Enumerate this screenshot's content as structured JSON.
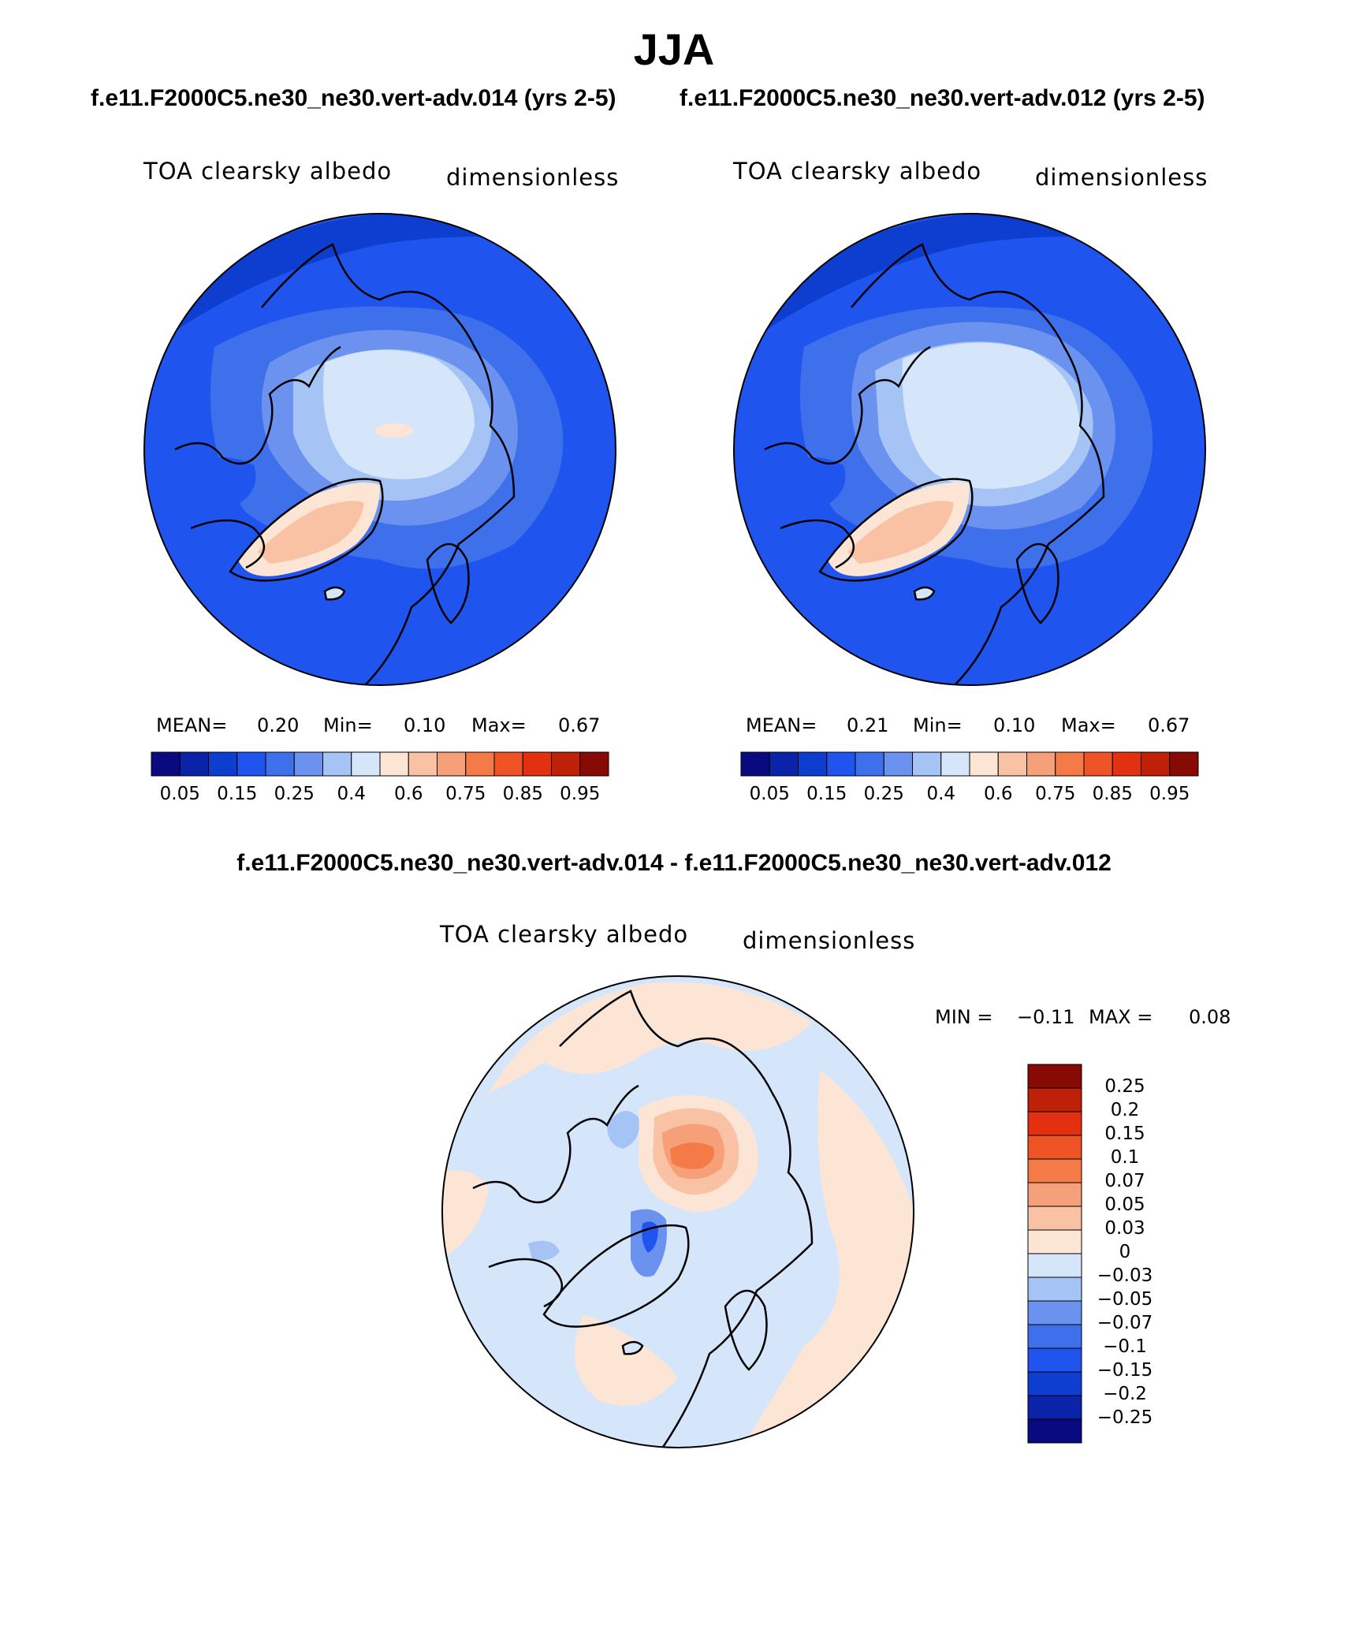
{
  "figure": {
    "season": "JJA",
    "case_a": "f.e11.F2000C5.ne30_ne30.vert-adv.014 (yrs 2-5)",
    "case_b": "f.e11.F2000C5.ne30_ne30.vert-adv.012 (yrs 2-5)",
    "diff_title": "f.e11.F2000C5.ne30_ne30.vert-adv.014 - f.e11.F2000C5.ne30_ne30.vert-adv.012"
  },
  "panels": [
    {
      "variable": "TOA clearsky albedo",
      "units": "dimensionless",
      "mean_label": "MEAN=",
      "mean": "0.20",
      "min_label": "Min=",
      "min": "0.10",
      "max_label": "Max=",
      "max": "0.67"
    },
    {
      "variable": "TOA clearsky albedo",
      "units": "dimensionless",
      "mean_label": "MEAN=",
      "mean": "0.21",
      "min_label": "Min=",
      "min": "0.10",
      "max_label": "Max=",
      "max": "0.67"
    }
  ],
  "diff_panel": {
    "variable": "TOA clearsky albedo",
    "units": "dimensionless",
    "min_label": "MIN =",
    "min": "−0.11",
    "max_label": "MAX =",
    "max": "0.08"
  },
  "colorbar_abs": {
    "colors": [
      "#0a0a80",
      "#0b23a8",
      "#0d3ed0",
      "#1f55ee",
      "#3f70ec",
      "#6a92ee",
      "#a5c4f5",
      "#d5e6fb",
      "#fde5d5",
      "#f9c2a5",
      "#f6a07a",
      "#f47a48",
      "#ef5326",
      "#e33010",
      "#be2008",
      "#870a04"
    ],
    "labels": [
      "0.05",
      "0.15",
      "0.25",
      "0.4",
      "0.6",
      "0.75",
      "0.85",
      "0.95"
    ]
  },
  "colorbar_diff": {
    "colors": [
      "#870a04",
      "#be2008",
      "#e33010",
      "#ef5326",
      "#f47a48",
      "#f6a07a",
      "#f9c2a5",
      "#fde5d5",
      "#d5e6fb",
      "#a5c4f5",
      "#6a92ee",
      "#3f70ec",
      "#1f55ee",
      "#0d3ed0",
      "#0b23a8",
      "#0a0a80"
    ],
    "labels": [
      "0.25",
      "0.2",
      "0.15",
      "0.1",
      "0.07",
      "0.05",
      "0.03",
      "0",
      "−0.03",
      "−0.05",
      "−0.07",
      "−0.1",
      "−0.15",
      "−0.2",
      "−0.25"
    ]
  },
  "map_colors": {
    "ocean_dark": "#1f55ee",
    "mid_blue": "#3f70ec",
    "light_blue": "#6a92ee",
    "pale_blue": "#a5c4f5",
    "ice": "#d5e6fb",
    "peach": "#fde5d5",
    "salmon": "#f9c2a5",
    "orange": "#f6a07a",
    "red_orange": "#f47a48"
  }
}
